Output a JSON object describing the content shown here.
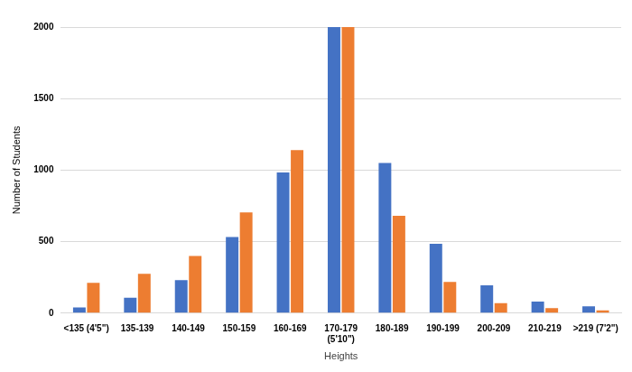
{
  "chart_data": {
    "type": "bar",
    "x_label": "Heights",
    "y_label": "Number of Students",
    "categories": [
      "<135 (4'5\")",
      "135-139",
      "140-149",
      "150-159",
      "160-169",
      "170-179\n(5'10\")",
      "180-189",
      "190-199",
      "200-209",
      "210-219",
      ">219 (7'2\")"
    ],
    "series": [
      {
        "color": "#4472c4",
        "values": [
          40,
          108,
          230,
          532,
          983,
          2000,
          1050,
          485,
          195,
          81,
          47
        ]
      },
      {
        "color": "#ed7d31",
        "values": [
          212,
          275,
          400,
          705,
          1140,
          2000,
          680,
          218,
          70,
          35,
          20
        ]
      }
    ],
    "ylim": [
      0,
      2000
    ],
    "yticks": [
      0,
      500,
      1000,
      1500,
      2000
    ],
    "grid": true
  }
}
